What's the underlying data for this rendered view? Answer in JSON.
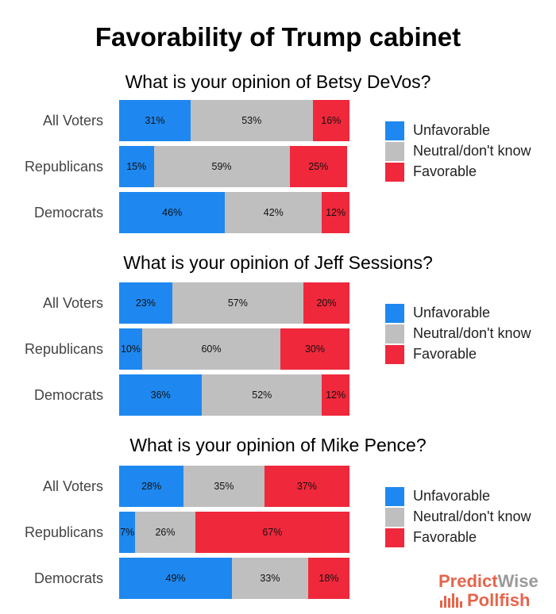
{
  "title": "Favorability of Trump cabinet",
  "colors": {
    "unfavorable": "#1e88f0",
    "neutral": "#bfbfbf",
    "favorable": "#f0283b"
  },
  "chart_data": [
    {
      "type": "bar",
      "stacked": true,
      "orientation": "horizontal",
      "title": "What is your opinion of Betsy DeVos?",
      "categories": [
        "All Voters",
        "Republicans",
        "Democrats"
      ],
      "series": [
        {
          "name": "Unfavorable",
          "values": [
            31,
            15,
            46
          ],
          "labels": [
            "31%",
            "15%",
            "46%"
          ]
        },
        {
          "name": "Neutral/don't know",
          "values": [
            53,
            59,
            42
          ],
          "labels": [
            "53%",
            "59%",
            "42%"
          ]
        },
        {
          "name": "Favorable",
          "values": [
            16,
            25,
            12
          ],
          "labels": [
            "16%",
            "25%",
            "12%"
          ]
        }
      ],
      "xlim": [
        0,
        100
      ],
      "legend_position": "right"
    },
    {
      "type": "bar",
      "stacked": true,
      "orientation": "horizontal",
      "title": "What is your opinion of Jeff Sessions?",
      "categories": [
        "All Voters",
        "Republicans",
        "Democrats"
      ],
      "series": [
        {
          "name": "Unfavorable",
          "values": [
            23,
            10,
            36
          ],
          "labels": [
            "23%",
            "10%",
            "36%"
          ]
        },
        {
          "name": "Neutral/don't know",
          "values": [
            57,
            60,
            52
          ],
          "labels": [
            "57%",
            "60%",
            "52%"
          ]
        },
        {
          "name": "Favorable",
          "values": [
            20,
            30,
            12
          ],
          "labels": [
            "20%",
            "30%",
            "12%"
          ]
        }
      ],
      "xlim": [
        0,
        100
      ],
      "legend_position": "right"
    },
    {
      "type": "bar",
      "stacked": true,
      "orientation": "horizontal",
      "title": "What is your opinion of Mike Pence?",
      "categories": [
        "All Voters",
        "Republicans",
        "Democrats"
      ],
      "series": [
        {
          "name": "Unfavorable",
          "values": [
            28,
            7,
            49
          ],
          "labels": [
            "28%",
            "7%",
            "49%"
          ]
        },
        {
          "name": "Neutral/don't know",
          "values": [
            35,
            26,
            33
          ],
          "labels": [
            "35%",
            "26%",
            "33%"
          ]
        },
        {
          "name": "Favorable",
          "values": [
            37,
            67,
            18
          ],
          "labels": [
            "37%",
            "67%",
            "18%"
          ]
        }
      ],
      "xlim": [
        0,
        100
      ],
      "legend_position": "right"
    }
  ],
  "logo": {
    "predict_part1": "Predict",
    "predict_part2": "Wise",
    "pollfish": "Pollfish",
    "icon": "pollfish-bars-icon"
  }
}
